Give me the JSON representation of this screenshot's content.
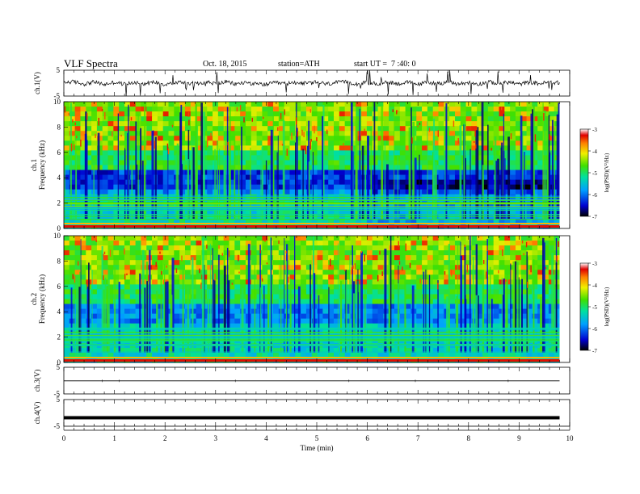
{
  "header": {
    "title": "VLF Spectra",
    "date": "Oct. 18, 2015",
    "station": "station=ATH",
    "start": "start UT =  7 :40: 0"
  },
  "chart_data": [
    {
      "type": "line",
      "panel": "ch1-waveform",
      "ylabel": "ch.1(V)",
      "yticks": [
        "5",
        "-5"
      ],
      "ylim": [
        -5,
        5
      ],
      "x": [
        0,
        0.2,
        0.4,
        0.6,
        0.8,
        1.0,
        1.2,
        1.4,
        1.6,
        1.8,
        2.0,
        2.2,
        2.4,
        2.6,
        2.8,
        3.0,
        3.2,
        3.4,
        3.6,
        3.8,
        4.0,
        4.2,
        4.4,
        4.6,
        4.8,
        5.0,
        5.2,
        5.4,
        5.6,
        5.8,
        6.0,
        6.2,
        6.4,
        6.6,
        6.8,
        7.0,
        7.2,
        7.4,
        7.6,
        7.8,
        8.0,
        8.2,
        8.4,
        8.6,
        8.8,
        9.0,
        9.2,
        9.4,
        9.6,
        9.8
      ],
      "values": [
        0.4,
        0.9,
        -0.6,
        0.8,
        -0.9,
        0.6,
        -0.7,
        0.5,
        -0.4,
        0.7,
        -0.8,
        0.3,
        0.6,
        -0.5,
        0.9,
        -0.3,
        0.8,
        -0.6,
        0.5,
        -0.7,
        -0.8,
        0.2,
        -0.4,
        0.6,
        -0.3,
        0.5,
        -0.6,
        0.4,
        0.7,
        -0.5,
        0.3,
        -0.6,
        0.8,
        -0.4,
        0.6,
        -0.7,
        0.5,
        -0.3,
        0.7,
        -0.6,
        0.4,
        -0.5,
        0.8,
        -0.4,
        0.6,
        -0.7,
        0.5,
        -0.3,
        0.6,
        0.2
      ]
    },
    {
      "type": "heatmap",
      "panel": "ch1-spectrogram",
      "ylabel": "ch.1\nFrequency (kHz)",
      "ylim": [
        0,
        10
      ],
      "yticks": [
        "10",
        "8",
        "6",
        "4",
        "2",
        "0"
      ],
      "colorbar": {
        "label": "log(PSD)(V²/Hz)",
        "ticks": [
          "-3",
          "-4",
          "-5",
          "-6",
          "-7"
        ],
        "range": [
          -7,
          -3
        ]
      }
    },
    {
      "type": "heatmap",
      "panel": "ch2-spectrogram",
      "ylabel": "ch.2\nFrequency (kHz)",
      "ylim": [
        0,
        10
      ],
      "yticks": [
        "10",
        "8",
        "6",
        "4",
        "2",
        "0"
      ],
      "colorbar": {
        "label": "log(PSD)(V²/Hz)",
        "ticks": [
          "-3",
          "-4",
          "-5",
          "-6",
          "-7"
        ],
        "range": [
          -7,
          -3
        ]
      }
    },
    {
      "type": "line",
      "panel": "ch3-waveform",
      "ylabel": "ch.3(V)",
      "yticks": [
        "5",
        "-5"
      ],
      "ylim": [
        -5,
        5
      ],
      "x": [
        0,
        9.8
      ],
      "values": [
        -0.1,
        -0.1
      ]
    },
    {
      "type": "line",
      "panel": "ch4-waveform",
      "ylabel": "ch.4(V)",
      "yticks": [
        "5",
        "-5"
      ],
      "ylim": [
        -5,
        5
      ],
      "x": [
        0,
        9.8
      ],
      "values": [
        -1.8,
        -1.8
      ]
    },
    {
      "type": "axis",
      "panel": "time-axis",
      "xlabel": "Time (min)",
      "xlim": [
        0,
        10
      ],
      "xticks": [
        "0",
        "1",
        "2",
        "3",
        "4",
        "5",
        "6",
        "7",
        "8",
        "9",
        "10"
      ],
      "data_end": 9.8
    }
  ]
}
